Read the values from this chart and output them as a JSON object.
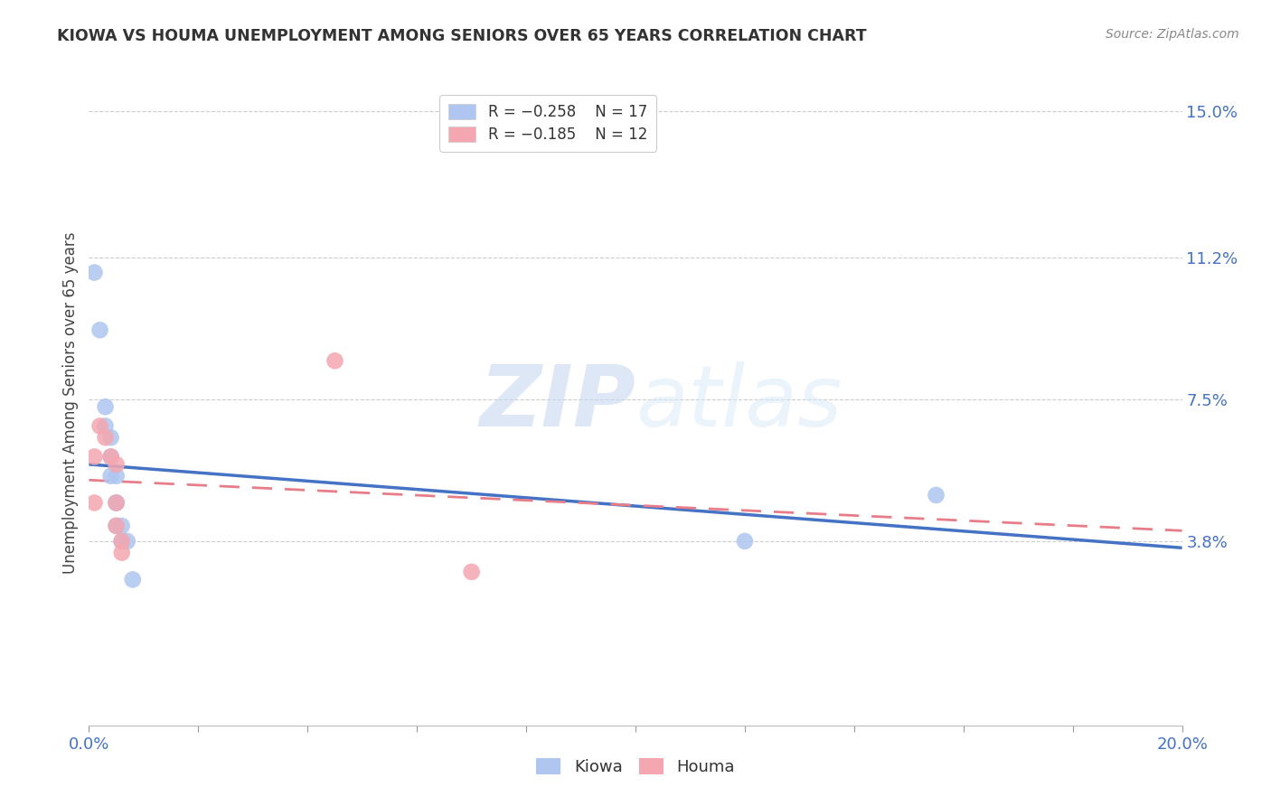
{
  "title": "KIOWA VS HOUMA UNEMPLOYMENT AMONG SENIORS OVER 65 YEARS CORRELATION CHART",
  "source": "Source: ZipAtlas.com",
  "ylabel": "Unemployment Among Seniors over 65 years",
  "xlim": [
    0.0,
    0.2
  ],
  "ylim": [
    -0.01,
    0.158
  ],
  "xticks": [
    0.0,
    0.02,
    0.04,
    0.06,
    0.08,
    0.1,
    0.12,
    0.14,
    0.16,
    0.18,
    0.2
  ],
  "xticklabels_show": {
    "0.0": "0.0%",
    "0.20": "20.0%"
  },
  "ytick_positions": [
    0.038,
    0.075,
    0.112,
    0.15
  ],
  "ytick_labels": [
    "3.8%",
    "7.5%",
    "11.2%",
    "15.0%"
  ],
  "legend1_entries": [
    {
      "label": "R = −0.258    N = 17",
      "color": "#aec6f0"
    },
    {
      "label": "R = −0.185    N = 12",
      "color": "#f4a7b0"
    }
  ],
  "kiowa_points": [
    [
      0.001,
      0.108
    ],
    [
      0.002,
      0.093
    ],
    [
      0.003,
      0.073
    ],
    [
      0.003,
      0.068
    ],
    [
      0.004,
      0.065
    ],
    [
      0.004,
      0.06
    ],
    [
      0.004,
      0.055
    ],
    [
      0.005,
      0.055
    ],
    [
      0.005,
      0.048
    ],
    [
      0.005,
      0.048
    ],
    [
      0.005,
      0.042
    ],
    [
      0.006,
      0.042
    ],
    [
      0.006,
      0.038
    ],
    [
      0.007,
      0.038
    ],
    [
      0.008,
      0.028
    ],
    [
      0.12,
      0.038
    ],
    [
      0.155,
      0.05
    ]
  ],
  "houma_points": [
    [
      0.001,
      0.06
    ],
    [
      0.001,
      0.048
    ],
    [
      0.002,
      0.068
    ],
    [
      0.003,
      0.065
    ],
    [
      0.004,
      0.06
    ],
    [
      0.005,
      0.058
    ],
    [
      0.005,
      0.048
    ],
    [
      0.005,
      0.042
    ],
    [
      0.006,
      0.038
    ],
    [
      0.006,
      0.035
    ],
    [
      0.045,
      0.085
    ],
    [
      0.07,
      0.03
    ]
  ],
  "kiowa_color": "#aec6f0",
  "houma_color": "#f4a7b0",
  "kiowa_line_color": "#4472c4",
  "houma_line_color": "#e87d8a",
  "watermark_zip": "ZIP",
  "watermark_atlas": "atlas",
  "background_color": "#ffffff",
  "grid_color": "#cccccc"
}
